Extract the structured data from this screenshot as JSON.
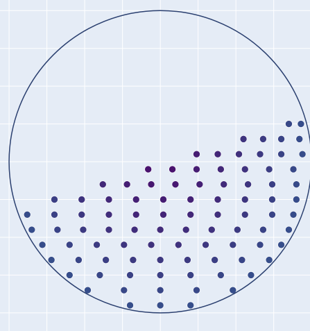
{
  "chart_data": {
    "type": "scatter",
    "xlim": [
      -1.06,
      0.99
    ],
    "ylim": [
      -1.12,
      1.07
    ],
    "xticks": [
      -1,
      -0.75,
      -0.5,
      -0.25,
      0,
      0.25,
      0.5,
      0.75
    ],
    "yticks": [
      -1,
      -0.75,
      -0.5,
      -0.25,
      0,
      0.25,
      0.5,
      0.75,
      1
    ],
    "grid": true,
    "background": "#e5ecf6",
    "grid_color": "#ffffff",
    "shape": {
      "type": "circle",
      "x0": -1,
      "x1": 1,
      "y0": -1,
      "y1": 1,
      "color": "#2a3f6f"
    },
    "marker": {
      "colorscale": [
        "#4b0c6b",
        "#35508c"
      ],
      "cmin": 0,
      "cmax": 1
    },
    "x": [
      0.85,
      0.93,
      0.55,
      0.68,
      0.8,
      0.92,
      0.24,
      0.38,
      0.52,
      0.66,
      0.8,
      0.94,
      -0.08,
      0.08,
      0.24,
      0.4,
      0.56,
      0.72,
      0.88,
      -0.38,
      -0.22,
      -0.06,
      0.1,
      0.26,
      0.42,
      0.58,
      0.74,
      0.9,
      -0.7,
      -0.52,
      -0.34,
      -0.16,
      0.02,
      0.2,
      0.38,
      0.56,
      0.74,
      0.9,
      -0.88,
      -0.7,
      -0.52,
      -0.34,
      -0.16,
      0.02,
      0.2,
      0.38,
      0.56,
      0.74,
      0.88,
      -0.85,
      -0.68,
      -0.51,
      -0.34,
      -0.17,
      0,
      0.17,
      0.34,
      0.51,
      0.68,
      0.85,
      -0.78,
      -0.6,
      -0.42,
      -0.24,
      -0.06,
      0.12,
      0.3,
      0.48,
      0.66,
      0.8,
      -0.72,
      -0.54,
      -0.36,
      -0.18,
      0,
      0.18,
      0.36,
      0.54,
      0.72,
      -0.6,
      -0.4,
      -0.2,
      0,
      0.2,
      0.4,
      0.6,
      -0.48,
      -0.24,
      0,
      0.24,
      0.48,
      -0.2,
      0,
      0.2
    ],
    "y": [
      0.25,
      0.25,
      0.15,
      0.15,
      0.15,
      0.15,
      0.05,
      0.05,
      0.05,
      0.05,
      0.05,
      0.05,
      -0.05,
      -0.05,
      -0.05,
      -0.05,
      -0.05,
      -0.05,
      -0.05,
      -0.15,
      -0.15,
      -0.15,
      -0.15,
      -0.15,
      -0.15,
      -0.15,
      -0.15,
      -0.15,
      -0.25,
      -0.25,
      -0.25,
      -0.25,
      -0.25,
      -0.25,
      -0.25,
      -0.25,
      -0.25,
      -0.25,
      -0.35,
      -0.35,
      -0.35,
      -0.35,
      -0.35,
      -0.35,
      -0.35,
      -0.35,
      -0.35,
      -0.35,
      -0.35,
      -0.45,
      -0.45,
      -0.45,
      -0.45,
      -0.45,
      -0.45,
      -0.45,
      -0.45,
      -0.45,
      -0.45,
      -0.45,
      -0.55,
      -0.55,
      -0.55,
      -0.55,
      -0.55,
      -0.55,
      -0.55,
      -0.55,
      -0.55,
      -0.55,
      -0.65,
      -0.65,
      -0.65,
      -0.65,
      -0.65,
      -0.65,
      -0.65,
      -0.65,
      -0.65,
      -0.75,
      -0.75,
      -0.75,
      -0.75,
      -0.75,
      -0.75,
      -0.75,
      -0.85,
      -0.85,
      -0.85,
      -0.85,
      -0.85,
      -0.95,
      -0.95,
      -0.95
    ]
  }
}
